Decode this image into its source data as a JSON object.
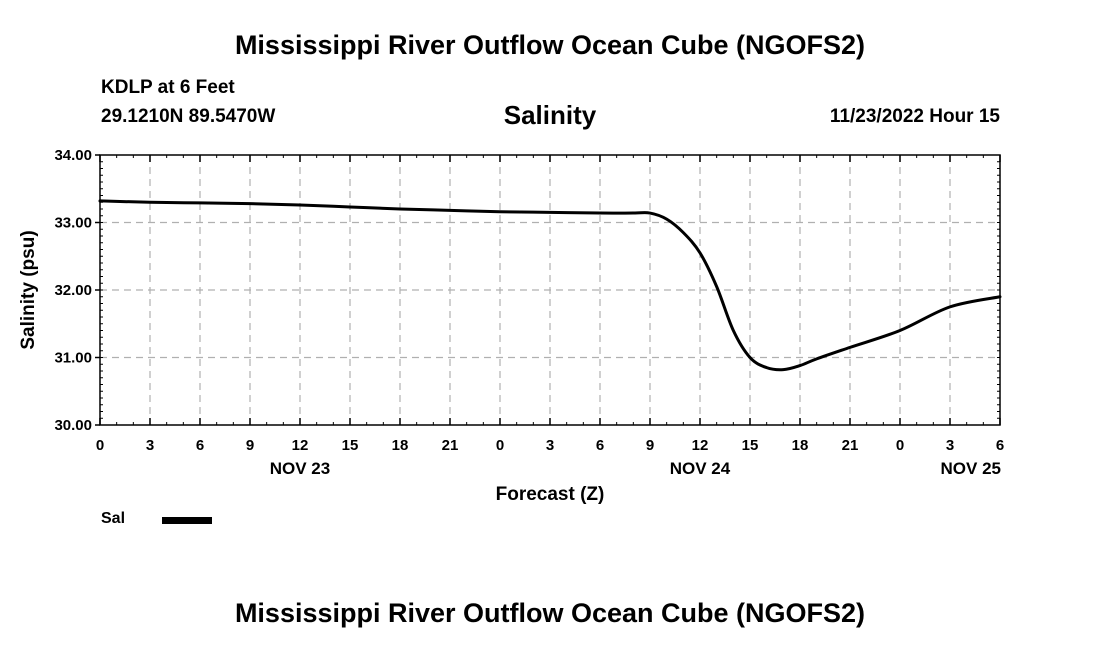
{
  "header": {
    "title": "Mississippi River Outflow Ocean Cube (NGOFS2)",
    "station": "KDLP at 6 Feet",
    "coords": "29.1210N  89.5470W",
    "variable": "Salinity",
    "timestamp": "11/23/2022 Hour 15"
  },
  "footer": {
    "title": "Mississippi River Outflow Ocean Cube (NGOFS2)"
  },
  "legend": {
    "label": "Sal",
    "color": "#000000"
  },
  "chart_data": {
    "type": "line",
    "title": "Salinity",
    "xlabel": "Forecast (Z)",
    "ylabel": "Salinity (psu)",
    "ylim": [
      30.0,
      34.0
    ],
    "xlim": [
      0,
      54
    ],
    "y_ticks": [
      "30.00",
      "31.00",
      "32.00",
      "33.00",
      "34.00"
    ],
    "y_tick_values": [
      30.0,
      31.0,
      32.0,
      33.0,
      34.0
    ],
    "x_ticks": [
      {
        "label": "0",
        "x": 0
      },
      {
        "label": "3",
        "x": 3
      },
      {
        "label": "6",
        "x": 6
      },
      {
        "label": "9",
        "x": 9
      },
      {
        "label": "12",
        "x": 12
      },
      {
        "label": "15",
        "x": 15
      },
      {
        "label": "18",
        "x": 18
      },
      {
        "label": "21",
        "x": 21
      },
      {
        "label": "0",
        "x": 24
      },
      {
        "label": "3",
        "x": 27
      },
      {
        "label": "6",
        "x": 30
      },
      {
        "label": "9",
        "x": 33
      },
      {
        "label": "12",
        "x": 36
      },
      {
        "label": "15",
        "x": 39
      },
      {
        "label": "18",
        "x": 42
      },
      {
        "label": "21",
        "x": 45
      },
      {
        "label": "0",
        "x": 48
      },
      {
        "label": "3",
        "x": 51
      },
      {
        "label": "6",
        "x": 54
      }
    ],
    "date_labels": [
      {
        "label": "NOV 23",
        "x": 12
      },
      {
        "label": "NOV 24",
        "x": 36
      },
      {
        "label": "NOV 25",
        "x": 54
      }
    ],
    "grid": true,
    "series": [
      {
        "name": "Sal",
        "x": [
          0,
          3,
          6,
          9,
          12,
          15,
          18,
          21,
          24,
          27,
          30,
          32,
          33,
          34,
          35,
          36,
          37,
          38,
          39,
          40,
          41,
          42,
          43,
          45,
          48,
          51,
          54
        ],
        "values": [
          33.32,
          33.3,
          33.29,
          33.28,
          33.26,
          33.23,
          33.2,
          33.18,
          33.16,
          33.15,
          33.14,
          33.14,
          33.14,
          33.05,
          32.85,
          32.55,
          32.05,
          31.4,
          31.0,
          30.85,
          30.82,
          30.88,
          30.98,
          31.15,
          31.4,
          31.75,
          31.9
        ]
      }
    ]
  }
}
